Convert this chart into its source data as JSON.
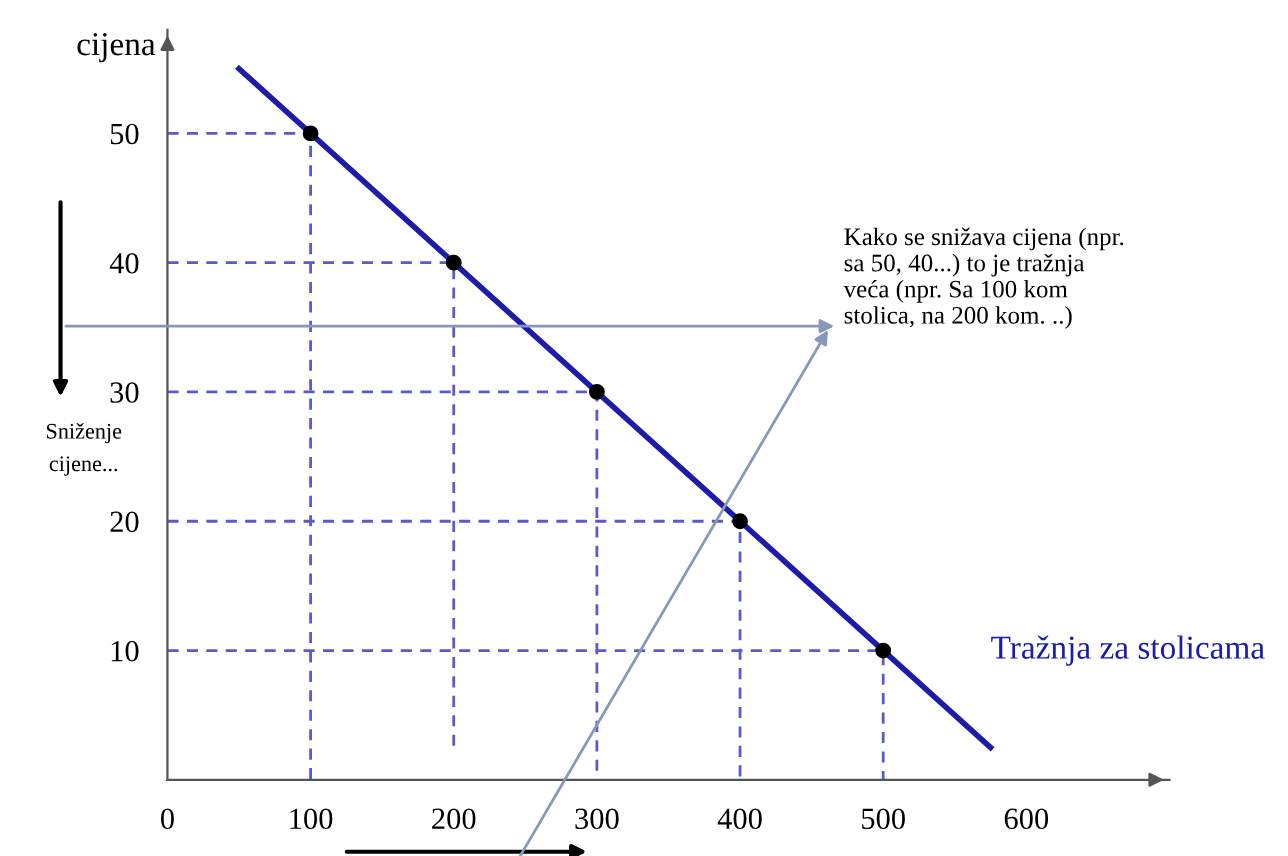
{
  "chart_data": {
    "type": "line",
    "ylabel": "cijena",
    "xlim": [
      0,
      700
    ],
    "ylim": [
      0,
      58
    ],
    "xticks": [
      0,
      100,
      200,
      300,
      400,
      500,
      600
    ],
    "yticks": [
      10,
      20,
      30,
      40,
      50
    ],
    "grid": false,
    "legend": false,
    "annotations": [
      "Sniženje cijene...",
      "Kako se snižava cijena (npr. sa 50, 40...) to je tražnja veća (npr. Sa 100 kom stolica, na 200 kom. ..)"
    ],
    "series": [
      {
        "name": "Tražnja za stolicama",
        "color": "#1c1ca8",
        "x": [
          50,
          575
        ],
        "values": [
          55,
          2.5
        ],
        "marker": "none",
        "line_style": "solid"
      },
      {
        "type": "line",
        "color": "#5a5ad0",
        "line_style": "dashed",
        "marker": "none",
        "x": [
          0,
          100,
          100,
          null,
          0,
          200,
          200,
          null,
          0,
          300,
          300,
          null,
          0,
          400,
          400,
          null,
          0,
          500,
          500
        ],
        "values": [
          50,
          50,
          0,
          null,
          40,
          40,
          2,
          null,
          30,
          30,
          0,
          null,
          20,
          20,
          0,
          null,
          10,
          10,
          0
        ]
      },
      {
        "type": "scatter",
        "color": "#000000",
        "marker": "circle",
        "x": [
          100,
          200,
          300,
          400,
          500
        ],
        "values": [
          50,
          40,
          30,
          20,
          10
        ]
      }
    ]
  }
}
